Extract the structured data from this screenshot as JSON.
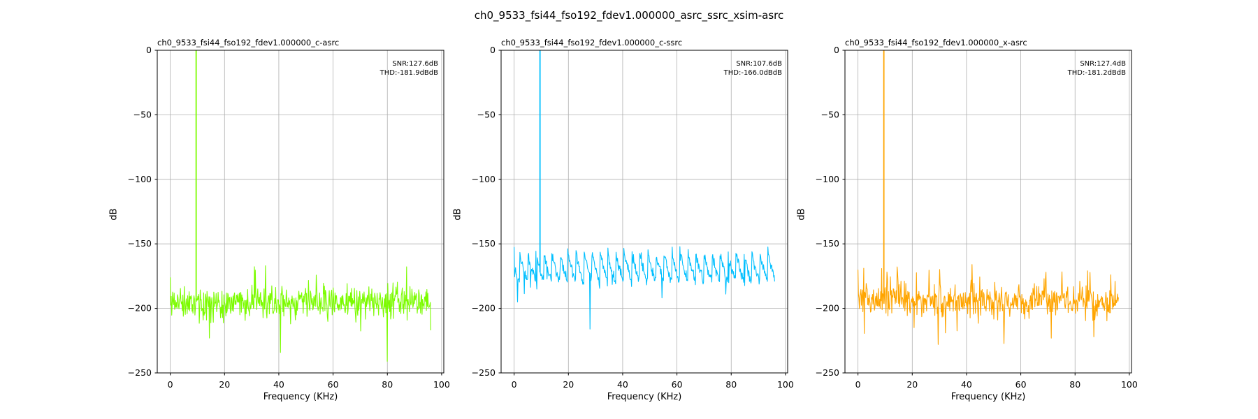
{
  "figure": {
    "title": "ch0_9533_fsi44_fso192_fdev1.000000_asrc_ssrc_xsim-asrc",
    "background": "#ffffff",
    "grid_color": "#b0b0b0",
    "axis_color": "#000000"
  },
  "chart_data": [
    {
      "type": "line",
      "title": "ch0_9533_fsi44_fso192_fdev1.000000_c-asrc",
      "xlabel": "Frequency (KHz)",
      "ylabel": "dB",
      "xlim": [
        -4.8,
        100.8
      ],
      "ylim": [
        -250,
        0
      ],
      "xticks": [
        0,
        20,
        40,
        60,
        80,
        100
      ],
      "yticks": [
        0,
        -50,
        -100,
        -150,
        -200,
        -250
      ],
      "grid": true,
      "annotation": {
        "lines": [
          "SNR:127.6dB",
          "THD:-181.9dBdB"
        ]
      },
      "series": {
        "name": "c-asrc",
        "color": "#7cfc00",
        "profile": "asrc",
        "tone_khz": 9.533,
        "tone_peak_db": 0,
        "noise_floor_mean_db": -195,
        "noise_peak_db": -167,
        "freq_range_khz": [
          0,
          96
        ],
        "first_db": -176,
        "features": [
          {
            "khz": 80,
            "db": -241
          },
          {
            "khz": 35,
            "db": -167
          }
        ],
        "seed": 11
      }
    },
    {
      "type": "line",
      "title": "ch0_9533_fsi44_fso192_fdev1.000000_c-ssrc",
      "xlabel": "Frequency (KHz)",
      "ylabel": "dB",
      "xlim": [
        -4.8,
        100.8
      ],
      "ylim": [
        -250,
        0
      ],
      "xticks": [
        0,
        20,
        40,
        60,
        80,
        100
      ],
      "yticks": [
        0,
        -50,
        -100,
        -150,
        -200,
        -250
      ],
      "grid": true,
      "annotation": {
        "lines": [
          "SNR:107.6dB",
          "THD:-166.0dBdB"
        ]
      },
      "series": {
        "name": "c-ssrc",
        "color": "#00bfff",
        "profile": "ssrc",
        "tone_khz": 9.533,
        "tone_peak_db": 0,
        "scallop_top_db": -155.5,
        "scallop_bottom_db": -180,
        "scallop_period_khz": 2.95,
        "noise_floor_mean_db": -170,
        "noise_peak_db": -151.5,
        "freq_range_khz": [
          0,
          96
        ],
        "first_db": -152.5,
        "features": [
          {
            "khz": 28,
            "db": -216
          }
        ],
        "seed": 22
      }
    },
    {
      "type": "line",
      "title": "ch0_9533_fsi44_fso192_fdev1.000000_x-asrc",
      "xlabel": "Frequency (KHz)",
      "ylabel": "dB",
      "xlim": [
        -4.8,
        100.8
      ],
      "ylim": [
        -250,
        0
      ],
      "xticks": [
        0,
        20,
        40,
        60,
        80,
        100
      ],
      "yticks": [
        0,
        -50,
        -100,
        -150,
        -200,
        -250
      ],
      "grid": true,
      "annotation": {
        "lines": [
          "SNR:127.4dB",
          "THD:-181.2dBdB"
        ]
      },
      "series": {
        "name": "x-asrc",
        "color": "#ffa500",
        "profile": "asrc",
        "tone_khz": 9.533,
        "tone_peak_db": 0,
        "noise_floor_mean_db": -194,
        "noise_peak_db": -166,
        "freq_range_khz": [
          0,
          96
        ],
        "first_db": -170,
        "features": [
          {
            "khz": 29.5,
            "db": -228
          },
          {
            "khz": 87,
            "db": -222
          },
          {
            "khz": 42,
            "db": -166
          }
        ],
        "seed": 33
      }
    }
  ]
}
